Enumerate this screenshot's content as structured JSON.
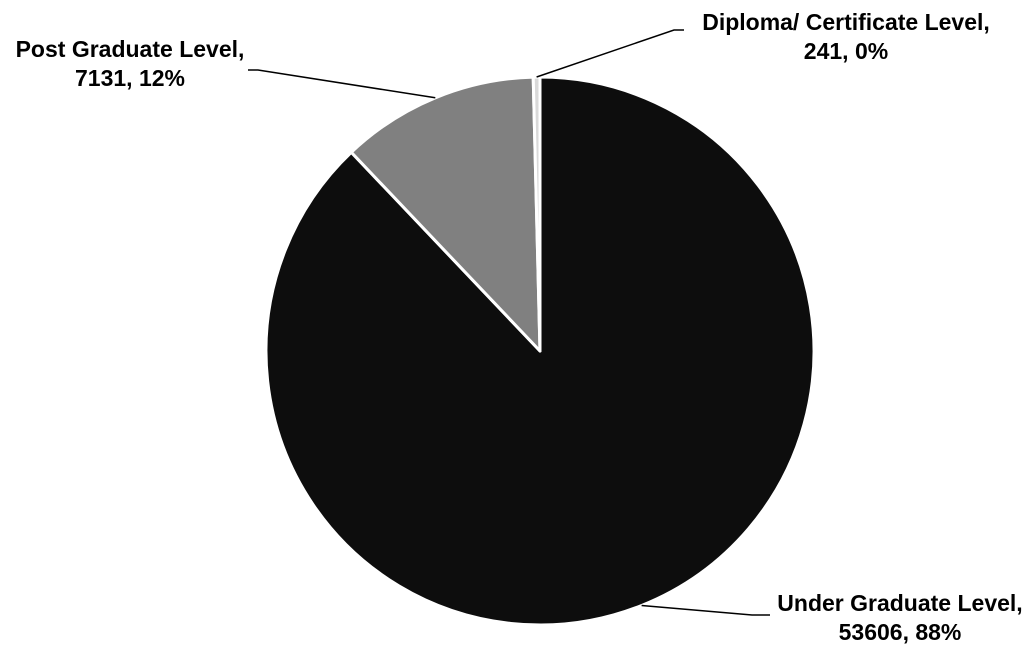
{
  "chart_data": {
    "type": "pie",
    "slices": [
      {
        "category": "Under Graduate Level",
        "value": 53606,
        "percent": "88%",
        "label_line1": "Under Graduate Level,",
        "label_line2": "53606, 88%",
        "color": "#0d0d0d"
      },
      {
        "category": "Post Graduate Level",
        "value": 7131,
        "percent": "12%",
        "label_line1": "Post Graduate Level,",
        "label_line2": "7131, 12%",
        "color": "#808080"
      },
      {
        "category": "Diploma/ Certificate Level",
        "value": 241,
        "percent": "0%",
        "label_line1": "Diploma/ Certificate Level,",
        "label_line2": "241, 0%",
        "color": "#d9d9d9"
      }
    ],
    "start_angle": "12 o'clock",
    "direction": "clockwise",
    "legend": "none"
  }
}
